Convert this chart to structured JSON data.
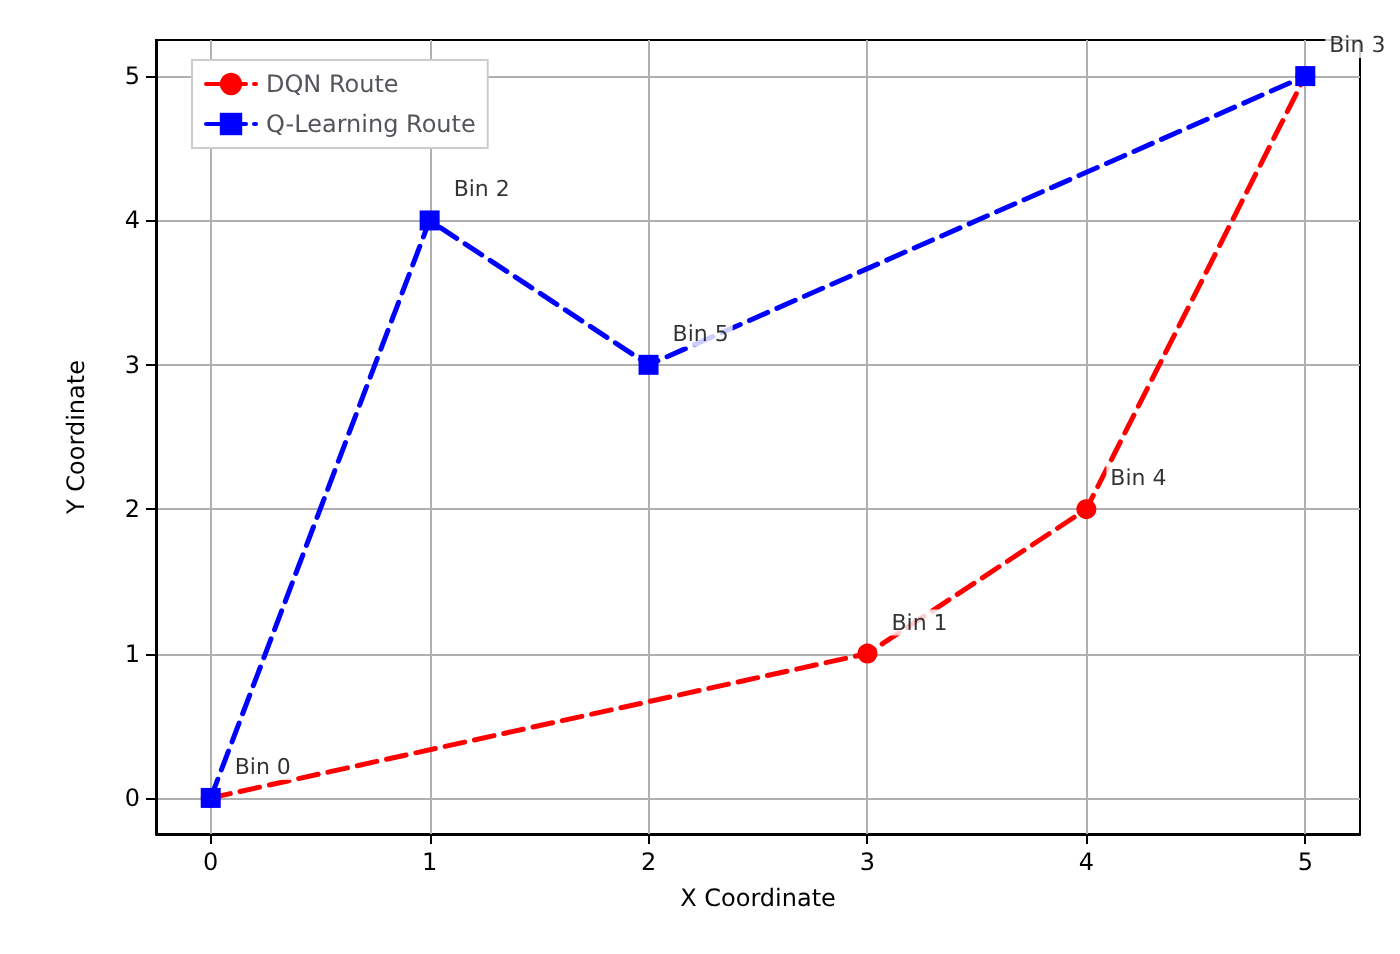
{
  "chart_data": {
    "type": "line",
    "xlabel": "X Coordinate",
    "ylabel": "Y Coordinate",
    "xlim": [
      -0.25,
      5.25
    ],
    "ylim": [
      -0.25,
      5.25
    ],
    "xticks": [
      0,
      1,
      2,
      3,
      4,
      5
    ],
    "yticks": [
      0,
      1,
      2,
      3,
      4,
      5
    ],
    "grid": true,
    "legend": "top left",
    "line_style": "dashed",
    "series": [
      {
        "name": "DQN Route",
        "color": "#ff0000",
        "marker": "circle",
        "x": [
          0,
          3,
          4,
          5
        ],
        "values": [
          0,
          1,
          2,
          5
        ]
      },
      {
        "name": "Q-Learning Route",
        "color": "#0000ff",
        "marker": "square",
        "x": [
          0,
          1,
          2,
          5
        ],
        "values": [
          0,
          4,
          3,
          5
        ]
      }
    ],
    "annotations": [
      {
        "text": "Bin 0",
        "x": 0,
        "y": 0
      },
      {
        "text": "Bin 2",
        "x": 1,
        "y": 4
      },
      {
        "text": "Bin 5",
        "x": 2,
        "y": 3
      },
      {
        "text": "Bin 1",
        "x": 3,
        "y": 1
      },
      {
        "text": "Bin 4",
        "x": 4,
        "y": 2
      },
      {
        "text": "Bin 3",
        "x": 5,
        "y": 5
      }
    ]
  }
}
